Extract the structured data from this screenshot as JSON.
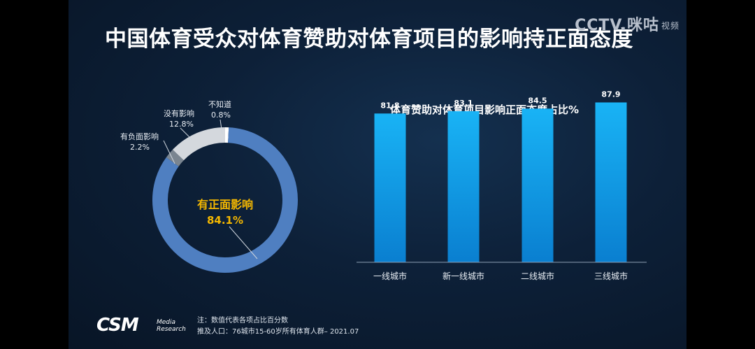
{
  "header": {
    "title": "中国体育受众对体育赞助对体育项目的影响持正面态度",
    "logo_cctv": "CCTV.",
    "logo_migu": "咪咕",
    "logo_sub": "视频"
  },
  "colors": {
    "positive": "#4f7fc1",
    "neutral_light": "#d4d8dd",
    "negative": "#7a8590",
    "highlight_text": "#f5b800",
    "bar_top": "#19b3f5",
    "bar_bottom": "#0a7fd0"
  },
  "chart_data": [
    {
      "type": "pie",
      "labels": [
        "有正面影响",
        "有负面影响",
        "没有影响",
        "不知道"
      ],
      "values": [
        84.1,
        2.2,
        12.8,
        0.8
      ],
      "value_labels": [
        "84.1%",
        "2.2%",
        "12.8%",
        "0.8%"
      ]
    },
    {
      "type": "bar",
      "title": "体育赞助对体育项目影响正面态度占比%",
      "categories": [
        "一线城市",
        "新一线城市",
        "二线城市",
        "三线城市"
      ],
      "values": [
        81.8,
        83.1,
        84.5,
        87.9
      ],
      "value_labels": [
        "81.8",
        "83.1",
        "84.5",
        "87.9"
      ],
      "ylim": [
        0,
        100
      ]
    }
  ],
  "footer": {
    "brand": "CSM",
    "brand_sub1": "Media",
    "brand_sub2": "Research",
    "note1": "注：数值代表各项占比百分数",
    "note2": "推及人口：76城市15-60岁所有体育人群– 2021.07"
  }
}
